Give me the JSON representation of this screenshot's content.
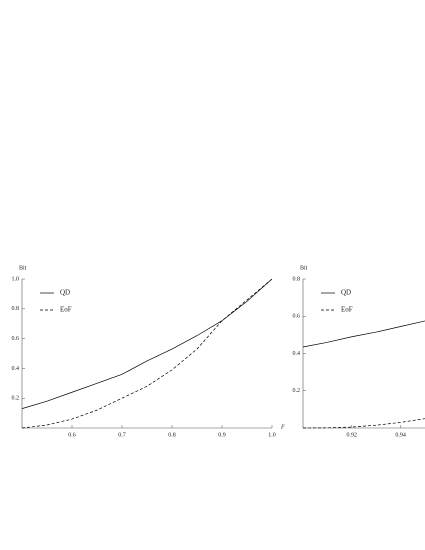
{
  "chart_data": [
    {
      "type": "line",
      "ylabel": "Bit",
      "xlabel": "F",
      "legend": "upper left",
      "x": [
        0.5,
        0.55,
        0.6,
        0.65,
        0.7,
        0.75,
        0.8,
        0.85,
        0.9,
        0.95,
        1.0
      ],
      "series": [
        {
          "name": "QD",
          "color": "#000000",
          "style": "solid",
          "values": [
            0.13,
            0.18,
            0.24,
            0.3,
            0.36,
            0.45,
            0.53,
            0.62,
            0.72,
            0.85,
            1.0
          ]
        },
        {
          "name": "EoF",
          "color": "#000000",
          "style": "dashed",
          "values": [
            0,
            0.02,
            0.06,
            0.12,
            0.2,
            0.28,
            0.39,
            0.53,
            0.72,
            0.86,
            1.0
          ]
        }
      ],
      "xlim": [
        0.5,
        1.0
      ],
      "ylim": [
        0,
        1.0
      ],
      "xticks": [
        0.6,
        0.7,
        0.8,
        0.9,
        {
          "value": 1.0,
          "label": "1.0"
        }
      ],
      "yticks": [
        0.2,
        0.4,
        0.6,
        0.8,
        {
          "value": 1.0,
          "label": "1.0"
        }
      ]
    },
    {
      "type": "line",
      "ylabel": "Bit",
      "legend": "upper left",
      "x": [
        0.9,
        0.91,
        0.92,
        0.93,
        0.94,
        0.95
      ],
      "series": [
        {
          "name": "QD",
          "color": "#000000",
          "style": "solid",
          "values": [
            0.435,
            0.46,
            0.49,
            0.515,
            0.545,
            0.575
          ]
        },
        {
          "name": "EoF",
          "color": "#000000",
          "style": "dashed",
          "values": [
            0,
            0.001,
            0.005,
            0.015,
            0.03,
            0.05
          ]
        }
      ],
      "xlim": [
        0.9,
        0.95
      ],
      "ylim": [
        0,
        0.8
      ],
      "xticks": [
        0.92,
        0.94
      ],
      "yticks": [
        0.2,
        0.4,
        0.6,
        0.8
      ]
    }
  ]
}
